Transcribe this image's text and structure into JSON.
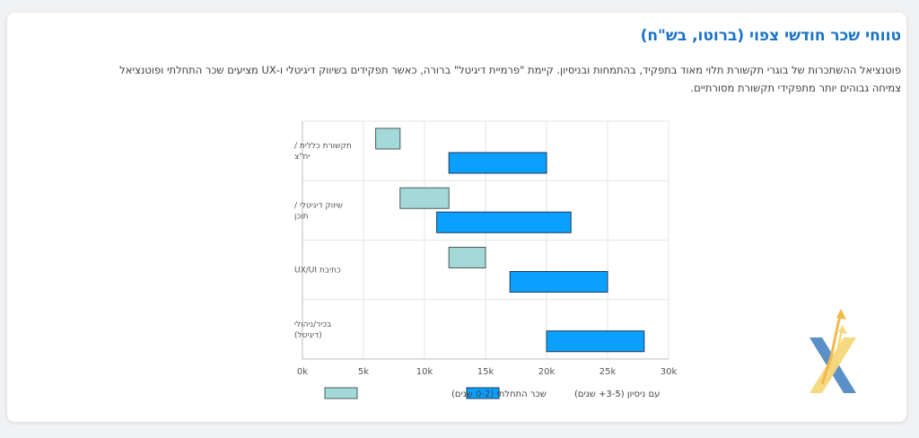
{
  "card": {
    "title": "טווחי שכר חודשי צפוי (ברוטו, בש\"ח)",
    "description": "פוטנציאל ההשתכרות של בוגרי תקשורת תלוי מאוד בתפקיד, בהתמחות ובניסיון. קיימת \"פרמיית דיגיטל\" ברורה, כאשר תפקידים בשיווק דיגיטלי ו-UX מציעים שכר התחלתי ופוטנציאל צמיחה גבוהים יותר מתפקידי תקשורת מסורתיים."
  },
  "chart_data": {
    "type": "bar",
    "orientation": "horizontal-floating",
    "categories": [
      [
        "תקשורת כללית /",
        "יח\"צ"
      ],
      [
        "שיווק דיגיטלי /",
        "תוכן"
      ],
      [
        "כתיבת UX/UI"
      ],
      [
        "בכיר/ניהולי",
        "(דיגיטל)"
      ]
    ],
    "series": [
      {
        "name": "שכר התחלתי (0-2 שנים)",
        "color": "#a3d9d8",
        "stroke": "#4a5a5a",
        "ranges": [
          [
            6000,
            8000
          ],
          [
            8000,
            12000
          ],
          [
            12000,
            15000
          ],
          null
        ]
      },
      {
        "name": "עם ניסיון (3-5+ שנים)",
        "color": "#0aa0ff",
        "stroke": "#1e3a55",
        "ranges": [
          [
            12000,
            20000
          ],
          [
            11000,
            22000
          ],
          [
            17000,
            25000
          ],
          [
            20000,
            28000
          ]
        ]
      }
    ],
    "xlim": [
      0,
      30000
    ],
    "xticks": [
      0,
      5000,
      10000,
      15000,
      20000,
      25000,
      30000
    ],
    "xtick_labels": [
      "0k",
      "5k",
      "10k",
      "15k",
      "20k",
      "25k",
      "30k"
    ],
    "grid": true,
    "legend_position": "bottom"
  },
  "logo": {
    "icon": "x-arrow-logo-icon"
  }
}
